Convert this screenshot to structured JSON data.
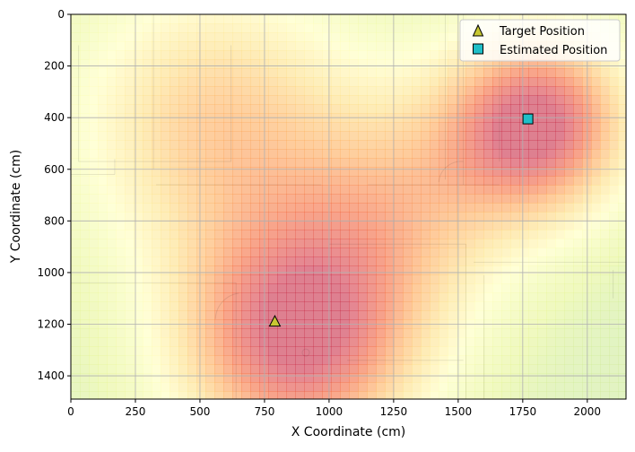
{
  "chart_data": {
    "type": "heatmap",
    "title": "",
    "xlabel": "X Coordinate (cm)",
    "ylabel": "Y Coordinate (cm)",
    "xlim": [
      0,
      2150
    ],
    "ylim": [
      1490,
      0
    ],
    "y_inverted": true,
    "x_ticks": [
      0,
      250,
      500,
      750,
      1000,
      1250,
      1500,
      1750,
      2000
    ],
    "y_ticks": [
      0,
      200,
      400,
      600,
      800,
      1000,
      1200,
      1400
    ],
    "grid": true,
    "legend_position": "top-right",
    "colormap": "Spectral (red = high, yellow = mid, blue = low)",
    "background": "floor plan outline",
    "heat_sources": [
      {
        "x": 880,
        "y": 1260,
        "strength": 1.0,
        "spread": 330
      },
      {
        "x": 1810,
        "y": 420,
        "strength": 1.0,
        "spread": 250
      },
      {
        "x": 560,
        "y": 420,
        "strength": 0.55,
        "spread": 380
      },
      {
        "x": 1300,
        "y": 730,
        "strength": 0.45,
        "spread": 330
      }
    ],
    "series": [
      {
        "name": "Target Position",
        "marker": "triangle",
        "color": "#c8c832",
        "points": [
          {
            "x": 790,
            "y": 1190
          }
        ]
      },
      {
        "name": "Estimated Position",
        "marker": "square",
        "color": "#1fbfc8",
        "points": [
          {
            "x": 1770,
            "y": 405
          }
        ]
      }
    ]
  }
}
